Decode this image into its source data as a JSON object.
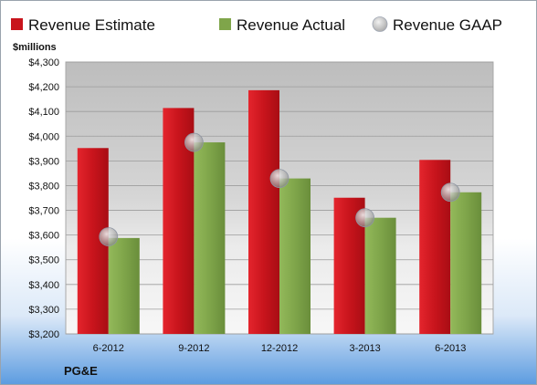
{
  "chart_data": {
    "type": "bar",
    "unit_label": "$millions",
    "company": "PG&E",
    "categories": [
      "6-2012",
      "9-2012",
      "12-2012",
      "3-2013",
      "6-2013"
    ],
    "series": [
      {
        "name": "Revenue Estimate",
        "kind": "bar",
        "color": "#c8141c",
        "values": [
          3952,
          4114,
          4186,
          3751,
          3904
        ]
      },
      {
        "name": "Revenue Actual",
        "kind": "bar",
        "color": "#7fa54a",
        "values": [
          3588,
          3975,
          3829,
          3670,
          3773
        ]
      },
      {
        "name": "Revenue GAAP",
        "kind": "marker",
        "color": "#c9cdd6",
        "values": [
          3593,
          3975,
          3829,
          3670,
          3773
        ]
      }
    ],
    "y_ticks": [
      "$3,200",
      "$3,300",
      "$3,400",
      "$3,500",
      "$3,600",
      "$3,700",
      "$3,800",
      "$3,900",
      "$4,000",
      "$4,100",
      "$4,200",
      "$4,300"
    ],
    "ylim": [
      3200,
      4300
    ],
    "grid": true,
    "legend_position": "top"
  }
}
